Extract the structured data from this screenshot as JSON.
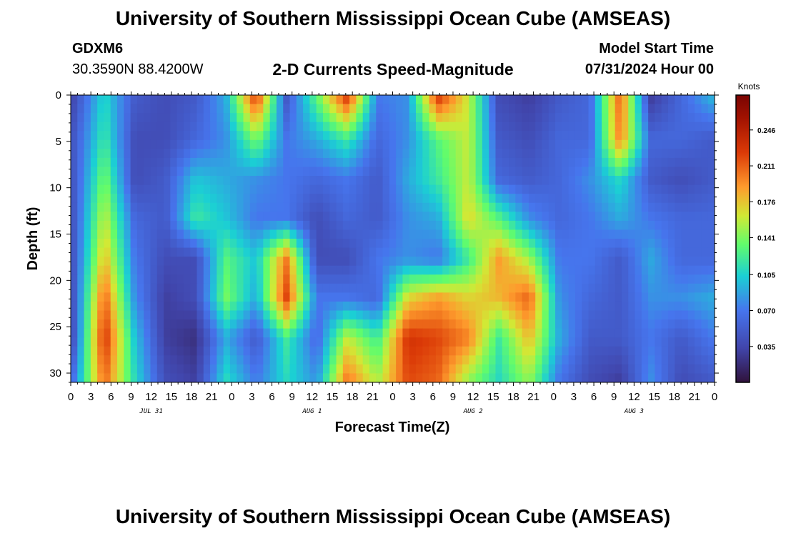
{
  "header": {
    "title": "University of Southern Mississippi Ocean Cube (AMSEAS)",
    "station": "GDXM6",
    "coords": "30.3590N  88.4200W",
    "subtitle": "2-D Currents Speed-Magnitude",
    "start_label": "Model Start Time",
    "start_value": "07/31/2024 Hour 00"
  },
  "footer": {
    "title": "University of Southern Mississippi Ocean Cube (AMSEAS)"
  },
  "chart_data": {
    "type": "heatmap",
    "title": "2-D Currents Speed-Magnitude",
    "xlabel": "Forecast Time(Z)",
    "ylabel": "Depth (ft)",
    "x_range_hours": [
      0,
      96
    ],
    "y_range": [
      0,
      31
    ],
    "x_tick_labels": [
      "0",
      "3",
      "6",
      "9",
      "12",
      "15",
      "18",
      "21",
      "0",
      "3",
      "6",
      "9",
      "12",
      "15",
      "18",
      "21",
      "0",
      "3",
      "6",
      "9",
      "12",
      "15",
      "18",
      "21",
      "0",
      "3",
      "6",
      "9",
      "12",
      "15",
      "18",
      "21",
      "0"
    ],
    "y_ticks": [
      0,
      5,
      10,
      15,
      20,
      25,
      30
    ],
    "day_labels": [
      {
        "hour": 12,
        "label": "JUL 31"
      },
      {
        "hour": 36,
        "label": "AUG 1"
      },
      {
        "hour": 60,
        "label": "AUG 2"
      },
      {
        "hour": 84,
        "label": "AUG 3"
      }
    ],
    "colorbar": {
      "unit": "Knots",
      "min": 0,
      "max": 0.28,
      "ticks": [
        0.035,
        0.07,
        0.105,
        0.141,
        0.176,
        0.211,
        0.246
      ],
      "tick_labels": [
        "0.035",
        "0.070",
        "0.105",
        "0.141",
        "0.176",
        "0.211",
        "0.246"
      ]
    },
    "grid": false,
    "values_knots": [
      [
        0.04,
        0.11,
        0.05,
        0.04,
        0.05,
        0.09,
        0.22,
        0.05,
        0.13,
        0.22,
        0.07,
        0.08,
        0.22,
        0.16,
        0.04,
        0.03,
        0.05,
        0.06,
        0.21,
        0.03,
        0.06,
        0.09
      ],
      [
        0.05,
        0.12,
        0.04,
        0.04,
        0.06,
        0.08,
        0.14,
        0.07,
        0.09,
        0.12,
        0.06,
        0.08,
        0.13,
        0.16,
        0.05,
        0.04,
        0.06,
        0.06,
        0.2,
        0.06,
        0.06,
        0.05
      ],
      [
        0.05,
        0.14,
        0.04,
        0.05,
        0.1,
        0.09,
        0.08,
        0.07,
        0.06,
        0.07,
        0.05,
        0.09,
        0.12,
        0.16,
        0.06,
        0.05,
        0.06,
        0.08,
        0.11,
        0.05,
        0.04,
        0.05
      ],
      [
        0.05,
        0.16,
        0.06,
        0.05,
        0.12,
        0.1,
        0.07,
        0.07,
        0.04,
        0.06,
        0.05,
        0.08,
        0.09,
        0.17,
        0.13,
        0.08,
        0.06,
        0.07,
        0.09,
        0.07,
        0.06,
        0.06
      ],
      [
        0.05,
        0.18,
        0.07,
        0.04,
        0.04,
        0.13,
        0.1,
        0.2,
        0.04,
        0.04,
        0.07,
        0.08,
        0.07,
        0.12,
        0.19,
        0.15,
        0.07,
        0.07,
        0.05,
        0.09,
        0.06,
        0.06
      ],
      [
        0.05,
        0.21,
        0.08,
        0.03,
        0.04,
        0.14,
        0.09,
        0.22,
        0.07,
        0.07,
        0.06,
        0.17,
        0.19,
        0.17,
        0.18,
        0.21,
        0.08,
        0.06,
        0.05,
        0.08,
        0.08,
        0.09
      ],
      [
        0.05,
        0.23,
        0.1,
        0.03,
        0.02,
        0.09,
        0.05,
        0.12,
        0.06,
        0.16,
        0.12,
        0.23,
        0.22,
        0.2,
        0.12,
        0.18,
        0.09,
        0.05,
        0.05,
        0.07,
        0.05,
        0.07
      ],
      [
        0.07,
        0.21,
        0.11,
        0.04,
        0.03,
        0.11,
        0.07,
        0.11,
        0.08,
        0.2,
        0.15,
        0.22,
        0.21,
        0.15,
        0.11,
        0.15,
        0.07,
        0.04,
        0.03,
        0.08,
        0.04,
        0.05
      ]
    ]
  }
}
